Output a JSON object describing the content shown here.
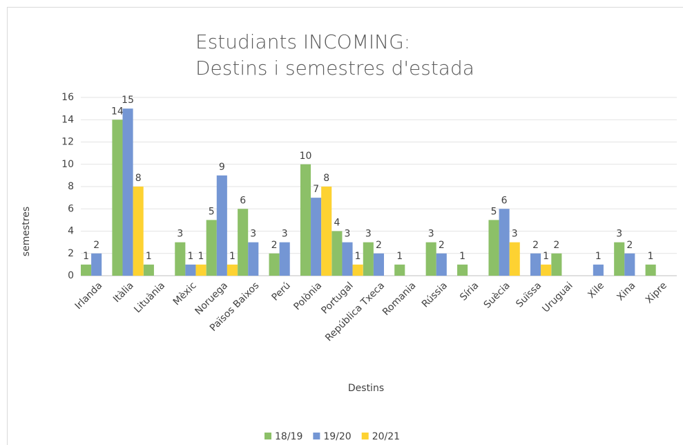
{
  "chart_data": {
    "type": "bar",
    "title": [
      "Estudiants INCOMING:",
      "Destins i semestres d'estada"
    ],
    "x_label": "Destins",
    "y_label": "semestres",
    "categories": [
      "Irlanda",
      "Itàlia",
      "Lituània",
      "Mèxic",
      "Noruega",
      "Països Baixos",
      "Perú",
      "Polònia",
      "Portugal",
      "República Txeca",
      "Romania",
      "Rússia",
      "Síria",
      "Suècia",
      "Suïssa",
      "Uruguai",
      "Xile",
      "Xina",
      "Xipre"
    ],
    "series": [
      {
        "name": "18/19",
        "color": "#8cc068",
        "values": [
          1,
          14,
          1,
          3,
          5,
          6,
          2,
          10,
          4,
          3,
          1,
          3,
          1,
          5,
          null,
          2,
          null,
          3,
          1
        ]
      },
      {
        "name": "19/20",
        "color": "#7496d4",
        "values": [
          2,
          15,
          null,
          1,
          9,
          3,
          3,
          7,
          3,
          2,
          null,
          2,
          null,
          6,
          2,
          null,
          1,
          2,
          null
        ]
      },
      {
        "name": "20/21",
        "color": "#fdd232",
        "values": [
          null,
          8,
          null,
          1,
          1,
          null,
          null,
          8,
          1,
          null,
          null,
          null,
          null,
          3,
          1,
          null,
          null,
          null,
          null
        ]
      }
    ],
    "ylim": [
      0,
      16
    ],
    "yticks": [
      0,
      2,
      4,
      6,
      8,
      10,
      12,
      14,
      16
    ],
    "grid": true,
    "legend": "bottom"
  }
}
